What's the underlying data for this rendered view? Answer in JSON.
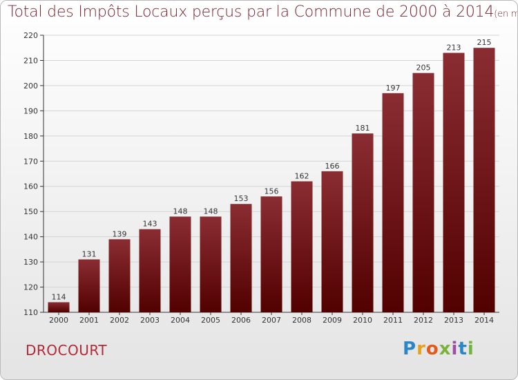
{
  "header": {
    "title": "Total des Impôts Locaux perçus par la Commune de 2000 à 2014",
    "unit": "(en milliers d'€)"
  },
  "footer": {
    "commune": "DROCOURT",
    "logo_letters": [
      "P",
      "r",
      "o",
      "x",
      "i",
      "t",
      "i"
    ],
    "logo_colors": [
      "#2b86c8",
      "#e8a21a",
      "#e35b1c",
      "#7bb33a",
      "#9c4fa3",
      "#2b86c8",
      "#6fb43c"
    ]
  },
  "colors": {
    "bar_top": "#8a2d33",
    "bar_bottom": "#520000",
    "grid": "#d4d4d4",
    "axis": "#333333",
    "label": "#333333"
  },
  "chart_data": {
    "type": "bar",
    "title": "Total des Impôts Locaux perçus par la Commune de 2000 à 2014",
    "ylabel": "en milliers d'€",
    "xlabel": "",
    "categories": [
      "2000",
      "2001",
      "2002",
      "2003",
      "2004",
      "2005",
      "2006",
      "2007",
      "2008",
      "2009",
      "2010",
      "2011",
      "2012",
      "2013",
      "2014"
    ],
    "values": [
      114,
      131,
      139,
      143,
      148,
      148,
      153,
      156,
      162,
      166,
      181,
      197,
      205,
      213,
      215
    ],
    "ylim": [
      110,
      220
    ],
    "yticks": [
      110,
      120,
      130,
      140,
      150,
      160,
      170,
      180,
      190,
      200,
      210,
      220
    ],
    "grid": true
  }
}
